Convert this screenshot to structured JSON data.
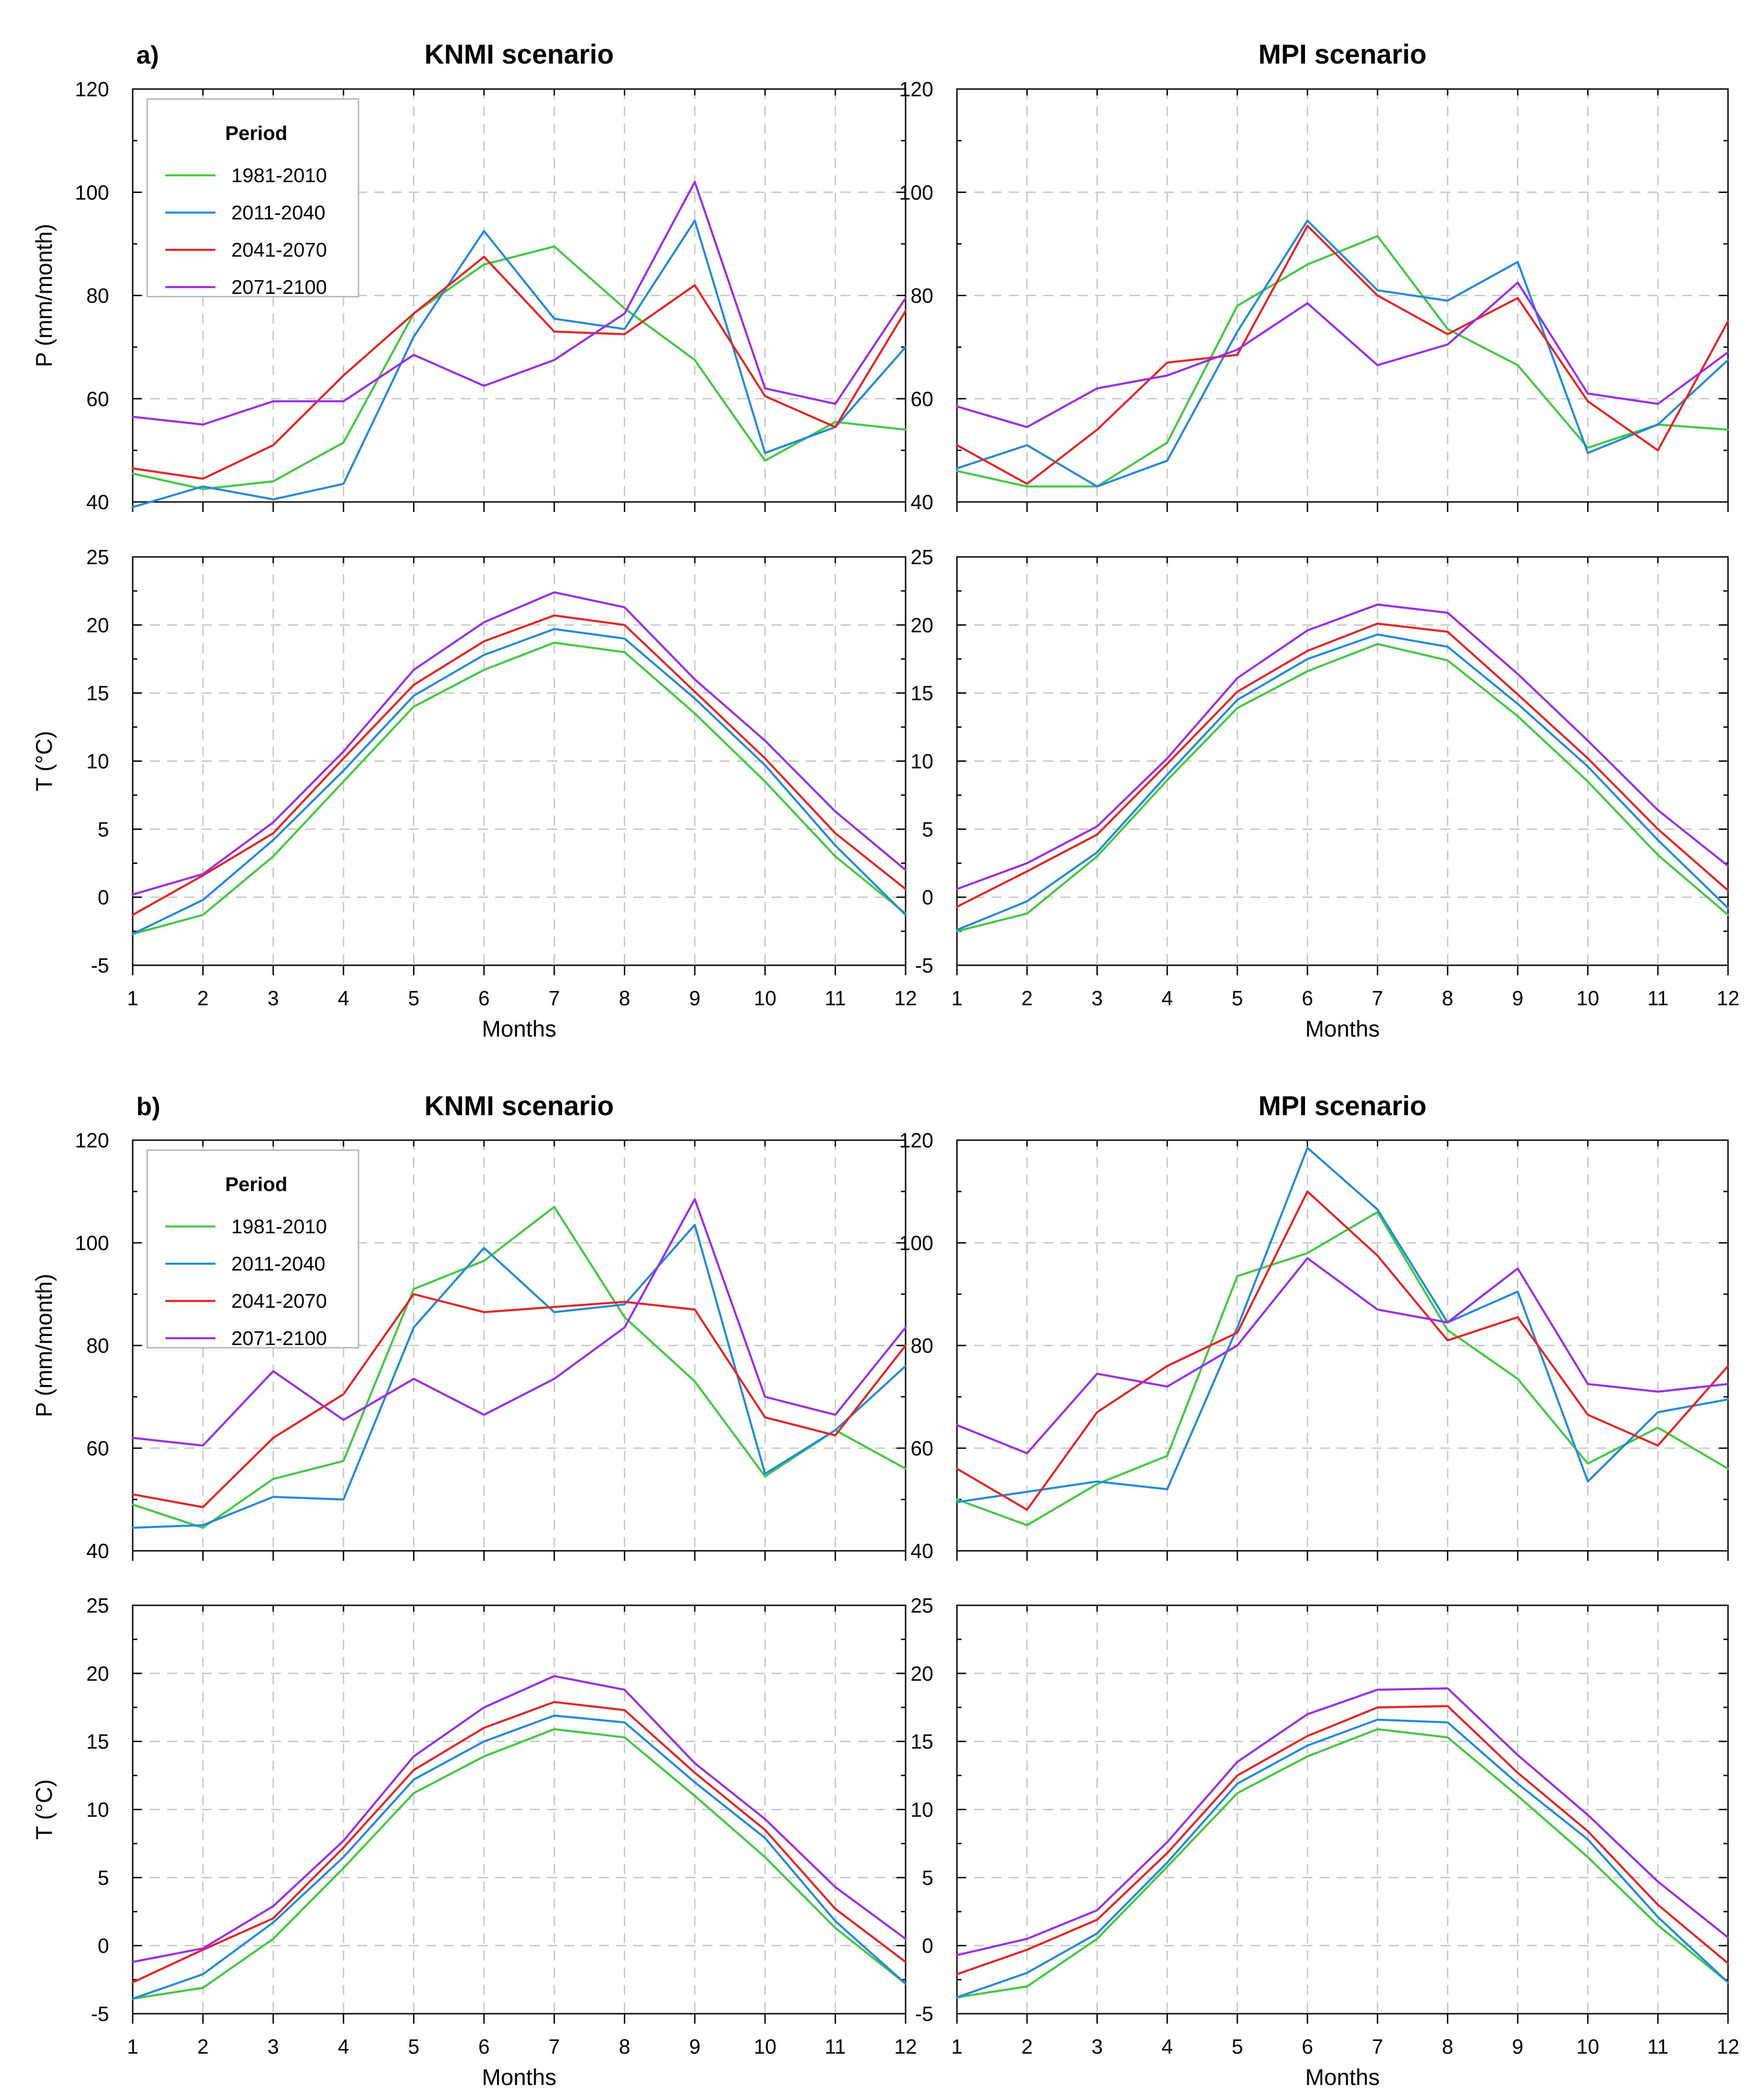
{
  "figure": {
    "sections": [
      {
        "label": "a)"
      },
      {
        "label": "b)"
      }
    ]
  },
  "legend": {
    "title": "Period",
    "entries": [
      {
        "name": "1981-2010",
        "color": "#3ccc3c"
      },
      {
        "name": "2011-2040",
        "color": "#1e8ae6"
      },
      {
        "name": "2041-2070",
        "color": "#ee2020"
      },
      {
        "name": "2071-2100",
        "color": "#a028f0"
      }
    ]
  },
  "chart_data": [
    {
      "type": "line",
      "id": "a-knmi-p",
      "section": "a)",
      "title": "KNMI scenario",
      "xlabel": "",
      "ylabel": "P (mm/month)",
      "ylim": [
        40,
        120
      ],
      "yticks": [
        40,
        60,
        80,
        100,
        120
      ],
      "x": [
        1,
        2,
        3,
        4,
        5,
        6,
        7,
        8,
        9,
        10,
        11,
        12
      ],
      "grid": true,
      "legend": "top-left",
      "series": [
        {
          "name": "1981-2010",
          "values": [
            45.5,
            42.5,
            44,
            51.5,
            76.5,
            86,
            89.5,
            77.5,
            67.5,
            48,
            55.5,
            54
          ]
        },
        {
          "name": "2011-2040",
          "values": [
            39,
            43,
            40.5,
            43.5,
            72,
            92.5,
            75.5,
            73.5,
            94.5,
            49.5,
            54.5,
            70
          ]
        },
        {
          "name": "2041-2070",
          "values": [
            46.5,
            44.5,
            51,
            64.5,
            76.5,
            87.5,
            73,
            72.5,
            82,
            60.5,
            54.5,
            77
          ]
        },
        {
          "name": "2071-2100",
          "values": [
            56.5,
            55,
            59.5,
            59.5,
            68.5,
            62.5,
            67.5,
            76.5,
            102,
            62,
            59,
            79.5
          ]
        }
      ]
    },
    {
      "type": "line",
      "id": "a-mpi-p",
      "section": "a)",
      "title": "MPI scenario",
      "xlabel": "",
      "ylabel": "",
      "ylim": [
        40,
        120
      ],
      "yticks": [
        40,
        60,
        80,
        100,
        120
      ],
      "x": [
        1,
        2,
        3,
        4,
        5,
        6,
        7,
        8,
        9,
        10,
        11,
        12
      ],
      "grid": true,
      "series": [
        {
          "name": "1981-2010",
          "values": [
            46,
            43,
            43,
            51.5,
            78,
            86,
            91.5,
            73.5,
            66.5,
            50.5,
            55,
            54
          ]
        },
        {
          "name": "2011-2040",
          "values": [
            46.5,
            51,
            43,
            48,
            73,
            94.5,
            81,
            79,
            86.5,
            49.5,
            55,
            67.5
          ]
        },
        {
          "name": "2041-2070",
          "values": [
            51,
            43.5,
            54,
            67,
            68.5,
            93.5,
            80,
            72.5,
            79.5,
            59.5,
            50,
            75
          ]
        },
        {
          "name": "2071-2100",
          "values": [
            58.5,
            54.5,
            62,
            64.5,
            69.5,
            78.5,
            66.5,
            70.5,
            82.5,
            61,
            59,
            69
          ]
        }
      ]
    },
    {
      "type": "line",
      "id": "a-knmi-t",
      "section": "a)",
      "title": "",
      "xlabel": "Months",
      "ylabel": "T (°C)",
      "ylim": [
        -5,
        25
      ],
      "yticks": [
        -5,
        0,
        5,
        10,
        15,
        20,
        25
      ],
      "x": [
        1,
        2,
        3,
        4,
        5,
        6,
        7,
        8,
        9,
        10,
        11,
        12
      ],
      "grid": true,
      "series": [
        {
          "name": "1981-2010",
          "values": [
            -2.7,
            -1.3,
            3,
            8.5,
            14,
            16.7,
            18.7,
            18,
            13.5,
            8.5,
            3,
            -1.2
          ]
        },
        {
          "name": "2011-2040",
          "values": [
            -2.7,
            -0.2,
            4.2,
            9.3,
            14.8,
            17.8,
            19.7,
            19,
            14.6,
            9.7,
            3.8,
            -1.3
          ]
        },
        {
          "name": "2041-2070",
          "values": [
            -1.3,
            1.6,
            4.7,
            10.2,
            15.6,
            18.8,
            20.7,
            20,
            15.1,
            10.2,
            4.7,
            0.6
          ]
        },
        {
          "name": "2071-2100",
          "values": [
            0.2,
            1.7,
            5.5,
            10.7,
            16.7,
            20.2,
            22.4,
            21.3,
            16,
            11.5,
            6.3,
            2
          ]
        }
      ]
    },
    {
      "type": "line",
      "id": "a-mpi-t",
      "section": "a)",
      "title": "",
      "xlabel": "Months",
      "ylabel": "",
      "ylim": [
        -5,
        25
      ],
      "yticks": [
        -5,
        0,
        5,
        10,
        15,
        20,
        25
      ],
      "x": [
        1,
        2,
        3,
        4,
        5,
        6,
        7,
        8,
        9,
        10,
        11,
        12
      ],
      "grid": true,
      "series": [
        {
          "name": "1981-2010",
          "values": [
            -2.5,
            -1.2,
            3,
            8.6,
            13.9,
            16.6,
            18.6,
            17.4,
            13.3,
            8.5,
            3.1,
            -1.3
          ]
        },
        {
          "name": "2011-2040",
          "values": [
            -2.4,
            -0.3,
            3.3,
            9,
            14.5,
            17.5,
            19.3,
            18.4,
            14.2,
            9.6,
            4.2,
            -0.8
          ]
        },
        {
          "name": "2041-2070",
          "values": [
            -0.7,
            1.9,
            4.6,
            9.8,
            15.1,
            18.1,
            20.1,
            19.5,
            14.9,
            10.2,
            5,
            0.5
          ]
        },
        {
          "name": "2071-2100",
          "values": [
            0.6,
            2.5,
            5.2,
            10.2,
            16.1,
            19.6,
            21.5,
            20.9,
            16.4,
            11.5,
            6.4,
            2.3
          ]
        }
      ]
    },
    {
      "type": "line",
      "id": "b-knmi-p",
      "section": "b)",
      "title": "KNMI scenario",
      "xlabel": "",
      "ylabel": "P (mm/month)",
      "ylim": [
        40,
        120
      ],
      "yticks": [
        40,
        60,
        80,
        100,
        120
      ],
      "x": [
        1,
        2,
        3,
        4,
        5,
        6,
        7,
        8,
        9,
        10,
        11,
        12
      ],
      "grid": true,
      "legend": "top-left",
      "series": [
        {
          "name": "1981-2010",
          "values": [
            49,
            44.5,
            54,
            57.5,
            91,
            96.5,
            107,
            85.5,
            73,
            54.5,
            63.5,
            56
          ]
        },
        {
          "name": "2011-2040",
          "values": [
            44.5,
            45,
            50.5,
            50,
            83.5,
            99,
            86.5,
            88,
            103.5,
            55,
            63.5,
            76
          ]
        },
        {
          "name": "2041-2070",
          "values": [
            51,
            48.5,
            62,
            70.5,
            90,
            86.5,
            87.5,
            88.5,
            87,
            66,
            62.5,
            80
          ]
        },
        {
          "name": "2071-2100",
          "values": [
            62,
            60.5,
            75,
            65.5,
            73.5,
            66.5,
            73.5,
            83.5,
            108.5,
            70,
            66.5,
            83.5
          ]
        }
      ]
    },
    {
      "type": "line",
      "id": "b-mpi-p",
      "section": "b)",
      "title": "MPI scenario",
      "xlabel": "",
      "ylabel": "",
      "ylim": [
        40,
        120
      ],
      "yticks": [
        40,
        60,
        80,
        100,
        120
      ],
      "x": [
        1,
        2,
        3,
        4,
        5,
        6,
        7,
        8,
        9,
        10,
        11,
        12
      ],
      "grid": true,
      "series": [
        {
          "name": "1981-2010",
          "values": [
            50,
            45,
            53,
            58.5,
            93.5,
            98,
            106,
            83,
            73.5,
            57,
            64,
            56
          ]
        },
        {
          "name": "2011-2040",
          "values": [
            49.5,
            51.5,
            53.5,
            52,
            83.5,
            118.5,
            106.5,
            84.5,
            90.5,
            53.5,
            67,
            69.5
          ]
        },
        {
          "name": "2041-2070",
          "values": [
            56,
            48,
            67,
            76,
            82.5,
            110,
            97.5,
            81,
            85.5,
            66.5,
            60.5,
            76
          ]
        },
        {
          "name": "2071-2100",
          "values": [
            64.5,
            59,
            74.5,
            72,
            80,
            97,
            87,
            84.5,
            95,
            72.5,
            71,
            72.5
          ]
        }
      ]
    },
    {
      "type": "line",
      "id": "b-knmi-t",
      "section": "b)",
      "title": "",
      "xlabel": "Months",
      "ylabel": "T (°C)",
      "ylim": [
        -5,
        25
      ],
      "yticks": [
        -5,
        0,
        5,
        10,
        15,
        20,
        25
      ],
      "x": [
        1,
        2,
        3,
        4,
        5,
        6,
        7,
        8,
        9,
        10,
        11,
        12
      ],
      "grid": true,
      "series": [
        {
          "name": "1981-2010",
          "values": [
            -3.9,
            -3.1,
            0.5,
            5.7,
            11.2,
            13.9,
            15.9,
            15.3,
            11,
            6.5,
            1.3,
            -2.8
          ]
        },
        {
          "name": "2011-2040",
          "values": [
            -3.9,
            -2.1,
            1.7,
            6.5,
            12.2,
            15,
            16.9,
            16.4,
            12,
            7.9,
            1.8,
            -2.8
          ]
        },
        {
          "name": "2041-2070",
          "values": [
            -2.7,
            -0.3,
            2,
            7.2,
            12.9,
            16,
            17.9,
            17.3,
            12.7,
            8.5,
            2.7,
            -1.2
          ]
        },
        {
          "name": "2071-2100",
          "values": [
            -1.2,
            -0.2,
            2.9,
            7.7,
            13.9,
            17.5,
            19.8,
            18.8,
            13.4,
            9.3,
            4.3,
            0.5
          ]
        }
      ]
    },
    {
      "type": "line",
      "id": "b-mpi-t",
      "section": "b)",
      "title": "",
      "xlabel": "Months",
      "ylabel": "",
      "ylim": [
        -5,
        25
      ],
      "yticks": [
        -5,
        0,
        5,
        10,
        15,
        20,
        25
      ],
      "x": [
        1,
        2,
        3,
        4,
        5,
        6,
        7,
        8,
        9,
        10,
        11,
        12
      ],
      "grid": true,
      "series": [
        {
          "name": "1981-2010",
          "values": [
            -3.8,
            -3,
            0.5,
            5.8,
            11.2,
            13.9,
            15.9,
            15.3,
            11,
            6.5,
            1.5,
            -2.7
          ]
        },
        {
          "name": "2011-2040",
          "values": [
            -3.8,
            -2,
            0.9,
            6.1,
            11.9,
            14.7,
            16.6,
            16.4,
            11.9,
            7.8,
            2.1,
            -2.7
          ]
        },
        {
          "name": "2041-2070",
          "values": [
            -2.1,
            -0.3,
            1.9,
            6.8,
            12.5,
            15.4,
            17.5,
            17.6,
            12.7,
            8.4,
            3,
            -1.3
          ]
        },
        {
          "name": "2071-2100",
          "values": [
            -0.7,
            0.5,
            2.6,
            7.6,
            13.5,
            17,
            18.8,
            18.9,
            14,
            9.6,
            4.7,
            0.6
          ]
        }
      ]
    }
  ]
}
